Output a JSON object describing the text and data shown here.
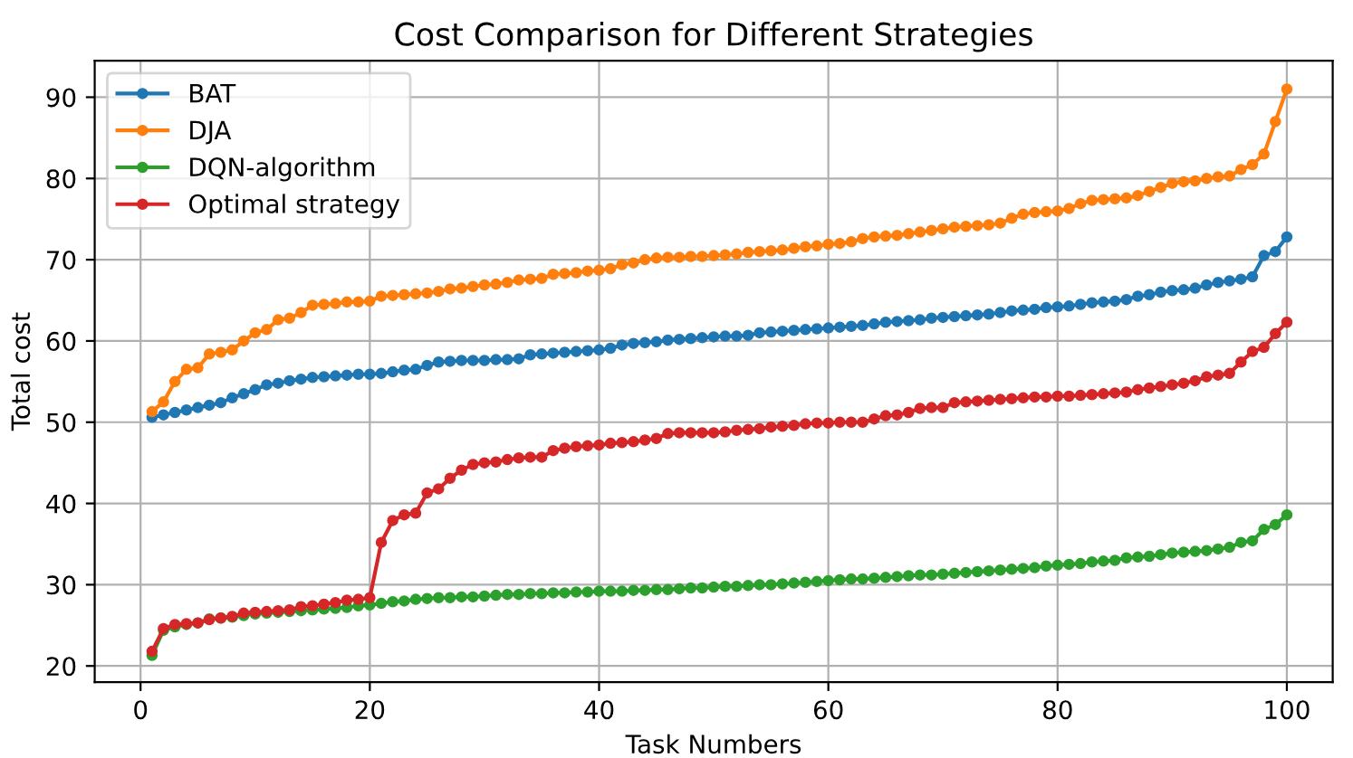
{
  "chart_data": {
    "type": "line",
    "title": "Cost Comparison for Different Strategies",
    "xlabel": "Task Numbers",
    "ylabel": "Total cost",
    "x": [
      1,
      2,
      3,
      4,
      5,
      6,
      7,
      8,
      9,
      10,
      11,
      12,
      13,
      14,
      15,
      16,
      17,
      18,
      19,
      20,
      21,
      22,
      23,
      24,
      25,
      26,
      27,
      28,
      29,
      30,
      31,
      32,
      33,
      34,
      35,
      36,
      37,
      38,
      39,
      40,
      41,
      42,
      43,
      44,
      45,
      46,
      47,
      48,
      49,
      50,
      51,
      52,
      53,
      54,
      55,
      56,
      57,
      58,
      59,
      60,
      61,
      62,
      63,
      64,
      65,
      66,
      67,
      68,
      69,
      70,
      71,
      72,
      73,
      74,
      75,
      76,
      77,
      78,
      79,
      80,
      81,
      82,
      83,
      84,
      85,
      86,
      87,
      88,
      89,
      90,
      91,
      92,
      93,
      94,
      95,
      96,
      97,
      98,
      99,
      100
    ],
    "series": [
      {
        "name": "BAT",
        "color": "#1f77b4",
        "values": [
          50.6,
          50.9,
          51.2,
          51.5,
          51.8,
          52.1,
          52.4,
          53.0,
          53.5,
          54.0,
          54.6,
          54.8,
          55.1,
          55.3,
          55.5,
          55.6,
          55.7,
          55.8,
          55.9,
          55.9,
          56.0,
          56.2,
          56.4,
          56.5,
          57.0,
          57.4,
          57.5,
          57.6,
          57.6,
          57.6,
          57.7,
          57.7,
          57.8,
          58.3,
          58.4,
          58.5,
          58.6,
          58.7,
          58.8,
          58.9,
          59.1,
          59.5,
          59.7,
          59.8,
          59.9,
          60.1,
          60.2,
          60.3,
          60.4,
          60.5,
          60.6,
          60.6,
          60.7,
          61.0,
          61.1,
          61.2,
          61.3,
          61.4,
          61.5,
          61.6,
          61.7,
          61.8,
          61.9,
          62.1,
          62.3,
          62.4,
          62.5,
          62.6,
          62.8,
          62.9,
          63.0,
          63.1,
          63.2,
          63.3,
          63.5,
          63.7,
          63.8,
          63.9,
          64.1,
          64.2,
          64.3,
          64.5,
          64.7,
          64.8,
          64.9,
          65.1,
          65.5,
          65.7,
          66.0,
          66.2,
          66.3,
          66.5,
          66.9,
          67.2,
          67.4,
          67.6,
          67.9,
          70.5,
          71.0,
          72.8
        ]
      },
      {
        "name": "DJA",
        "color": "#ff7f0e",
        "values": [
          51.3,
          52.5,
          55.0,
          56.5,
          56.7,
          58.4,
          58.6,
          58.9,
          60.0,
          61.0,
          61.4,
          62.6,
          62.8,
          63.5,
          64.4,
          64.5,
          64.6,
          64.8,
          64.8,
          64.9,
          65.5,
          65.6,
          65.7,
          65.8,
          65.9,
          66.1,
          66.4,
          66.5,
          66.7,
          66.9,
          67.0,
          67.2,
          67.5,
          67.6,
          67.7,
          68.2,
          68.3,
          68.4,
          68.6,
          68.7,
          68.9,
          69.4,
          69.6,
          70.0,
          70.2,
          70.3,
          70.3,
          70.4,
          70.4,
          70.5,
          70.6,
          70.7,
          70.9,
          71.0,
          71.1,
          71.2,
          71.4,
          71.6,
          71.7,
          71.9,
          72.0,
          72.2,
          72.6,
          72.8,
          72.9,
          73.0,
          73.2,
          73.4,
          73.6,
          73.8,
          74.0,
          74.1,
          74.2,
          74.3,
          74.5,
          75.1,
          75.6,
          75.8,
          75.9,
          76.0,
          76.3,
          76.9,
          77.3,
          77.4,
          77.5,
          77.6,
          77.9,
          78.4,
          78.9,
          79.4,
          79.6,
          79.7,
          80.0,
          80.2,
          80.3,
          81.1,
          81.7,
          83.0,
          87.0,
          91.0
        ]
      },
      {
        "name": "DQN-algorithm",
        "color": "#2ca02c",
        "values": [
          21.3,
          24.4,
          24.8,
          25.1,
          25.3,
          25.8,
          25.9,
          26.0,
          26.2,
          26.4,
          26.5,
          26.6,
          26.7,
          26.8,
          26.9,
          27.0,
          27.1,
          27.2,
          27.4,
          27.5,
          27.7,
          27.9,
          28.0,
          28.2,
          28.3,
          28.4,
          28.4,
          28.5,
          28.5,
          28.6,
          28.7,
          28.8,
          28.8,
          28.9,
          28.9,
          29.0,
          29.0,
          29.1,
          29.1,
          29.2,
          29.2,
          29.2,
          29.3,
          29.3,
          29.4,
          29.4,
          29.5,
          29.6,
          29.6,
          29.7,
          29.8,
          29.8,
          29.9,
          30.0,
          30.0,
          30.1,
          30.2,
          30.3,
          30.4,
          30.5,
          30.6,
          30.7,
          30.7,
          30.8,
          30.9,
          31.0,
          31.1,
          31.2,
          31.2,
          31.3,
          31.4,
          31.5,
          31.6,
          31.7,
          31.8,
          31.9,
          32.0,
          32.1,
          32.3,
          32.4,
          32.5,
          32.6,
          32.8,
          32.9,
          33.0,
          33.3,
          33.4,
          33.5,
          33.7,
          33.9,
          34.0,
          34.1,
          34.2,
          34.4,
          34.6,
          35.2,
          35.4,
          36.8,
          37.4,
          38.6
        ]
      },
      {
        "name": "Optimal strategy",
        "color": "#d62728",
        "values": [
          21.8,
          24.6,
          25.1,
          25.2,
          25.3,
          25.7,
          25.9,
          26.1,
          26.5,
          26.6,
          26.7,
          26.8,
          26.9,
          27.3,
          27.4,
          27.6,
          27.8,
          28.1,
          28.2,
          28.4,
          35.2,
          37.9,
          38.6,
          38.8,
          41.3,
          41.8,
          43.1,
          44.1,
          44.8,
          45.0,
          45.1,
          45.4,
          45.6,
          45.7,
          45.7,
          46.5,
          46.8,
          47.0,
          47.1,
          47.2,
          47.4,
          47.5,
          47.6,
          47.8,
          48.0,
          48.6,
          48.7,
          48.7,
          48.7,
          48.7,
          48.8,
          49.0,
          49.1,
          49.2,
          49.4,
          49.5,
          49.6,
          49.8,
          49.9,
          49.9,
          50.0,
          50.0,
          50.0,
          50.4,
          50.8,
          50.9,
          51.2,
          51.7,
          51.8,
          51.8,
          52.4,
          52.5,
          52.6,
          52.7,
          52.8,
          52.9,
          53.0,
          53.1,
          53.1,
          53.2,
          53.2,
          53.3,
          53.4,
          53.5,
          53.6,
          53.7,
          54.0,
          54.2,
          54.4,
          54.6,
          54.8,
          55.1,
          55.6,
          55.8,
          56.0,
          57.4,
          58.7,
          59.2,
          60.9,
          62.3
        ]
      }
    ],
    "xlim": [
      -4,
      104
    ],
    "ylim": [
      18,
      94.5
    ],
    "xticks": [
      0,
      20,
      40,
      60,
      80,
      100
    ],
    "yticks": [
      20,
      30,
      40,
      50,
      60,
      70,
      80,
      90
    ],
    "grid": true,
    "legend": "top left",
    "marker": "circle",
    "line_style": "solid"
  }
}
